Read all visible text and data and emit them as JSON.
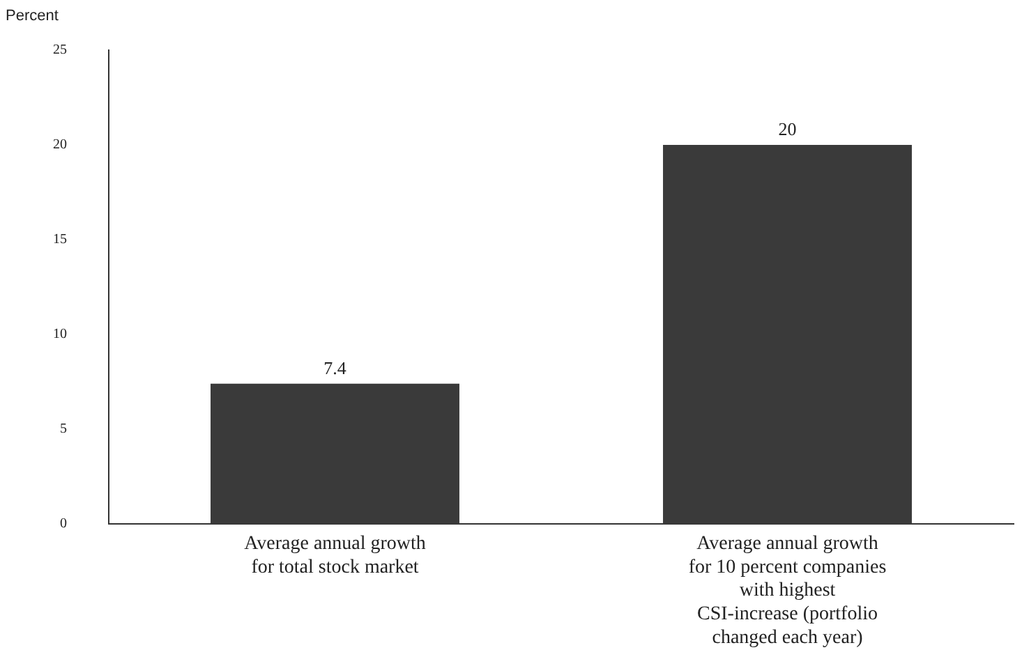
{
  "chart_data": {
    "type": "bar",
    "ylabel": "Percent",
    "categories": [
      "Average annual growth\nfor total stock market",
      "Average annual growth\nfor 10 percent companies\nwith highest\nCSI-increase (portfolio\nchanged each year)"
    ],
    "values": [
      7.4,
      20
    ],
    "color": "#3a3a3a",
    "ylim": [
      0,
      25
    ],
    "yticks": [
      0,
      5,
      10,
      15,
      20,
      25
    ],
    "grid": false,
    "legend": false,
    "data_labels": true
  }
}
